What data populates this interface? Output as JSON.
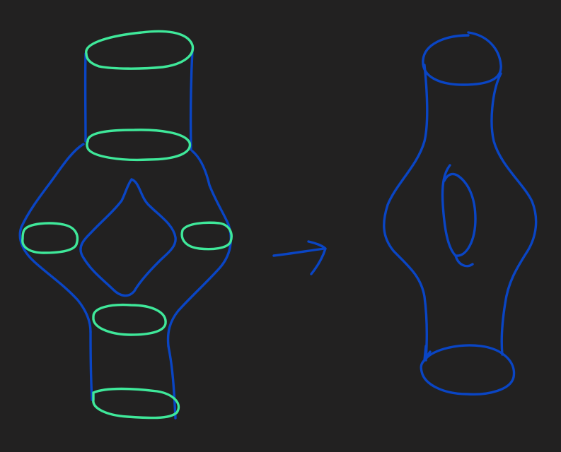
{
  "canvas": {
    "background": "#222121"
  },
  "colors": {
    "surface_stroke": "#0a45c4",
    "boundary_stroke": "#3fe89a"
  },
  "figures": {
    "left": {
      "description_icon": "decomposed-surface-with-boundary-circles",
      "boundary_circle_count": 6
    },
    "arrow": {
      "icon": "right-arrow-icon"
    },
    "right": {
      "description_icon": "genus-one-surface-with-two-boundaries",
      "boundary_circle_count": 2
    }
  }
}
